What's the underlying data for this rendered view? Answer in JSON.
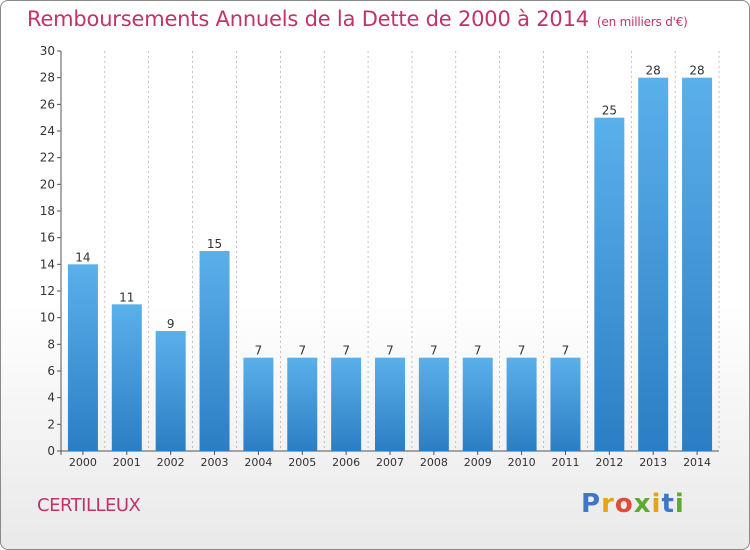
{
  "header": {
    "title": "Remboursements Annuels de la Dette de 2000 à 2014",
    "unit": "(en milliers d'€)"
  },
  "footer": {
    "commune": "CERTILLEUX",
    "logo_letters": [
      "P",
      "r",
      "o",
      "x",
      "i",
      "t",
      "i"
    ]
  },
  "colors": {
    "title": "#c1336b",
    "bar_top": "#5ab0ea",
    "bar_bottom": "#2c7ec4",
    "axis": "#555555",
    "grid": "#999999"
  },
  "chart_data": {
    "type": "bar",
    "categories": [
      "2000",
      "2001",
      "2002",
      "2003",
      "2004",
      "2005",
      "2006",
      "2007",
      "2008",
      "2009",
      "2010",
      "2011",
      "2012",
      "2013",
      "2014"
    ],
    "values": [
      14,
      11,
      9,
      15,
      7,
      7,
      7,
      7,
      7,
      7,
      7,
      7,
      25,
      28,
      28
    ],
    "title": "Remboursements Annuels de la Dette de 2000 à 2014",
    "xlabel": "",
    "ylabel": "",
    "ylim": [
      0,
      30
    ],
    "yticks": [
      0,
      2,
      4,
      6,
      8,
      10,
      12,
      14,
      16,
      18,
      20,
      22,
      24,
      26,
      28,
      30
    ],
    "grid": "vertical-dashed",
    "legend": "none"
  }
}
